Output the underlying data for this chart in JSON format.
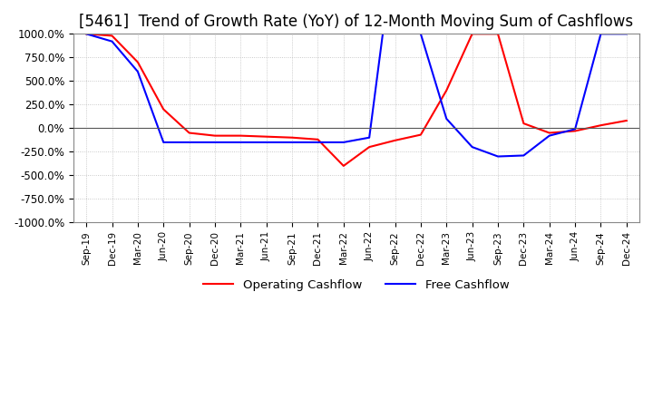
{
  "title": "[5461]  Trend of Growth Rate (YoY) of 12-Month Moving Sum of Cashflows",
  "ylim": [
    -1000,
    1000
  ],
  "yticks": [
    -1000,
    -750,
    -500,
    -250,
    0,
    250,
    500,
    750,
    1000
  ],
  "ytick_labels": [
    "-1000.0%",
    "-750.0%",
    "-500.0%",
    "-250.0%",
    "0.0%",
    "250.0%",
    "500.0%",
    "750.0%",
    "1000.0%"
  ],
  "xlabel_dates": [
    "Sep-19",
    "Dec-19",
    "Mar-20",
    "Jun-20",
    "Sep-20",
    "Dec-20",
    "Mar-21",
    "Jun-21",
    "Sep-21",
    "Dec-21",
    "Mar-22",
    "Jun-22",
    "Sep-22",
    "Dec-22",
    "Mar-23",
    "Jun-23",
    "Sep-23",
    "Dec-23",
    "Mar-24",
    "Jun-24",
    "Sep-24",
    "Dec-24"
  ],
  "operating_cashflow": [
    1000,
    980,
    700,
    200,
    -50,
    -80,
    -80,
    -90,
    -100,
    -120,
    -400,
    -200,
    -130,
    -70,
    400,
    1000,
    1000,
    50,
    -50,
    -30,
    30,
    80
  ],
  "free_cashflow": [
    1000,
    920,
    600,
    -150,
    -150,
    -150,
    -150,
    -150,
    -150,
    -150,
    -150,
    -100,
    2000,
    1000,
    100,
    -200,
    -300,
    -290,
    -80,
    -10,
    1000,
    1000
  ],
  "operating_color": "#ff0000",
  "free_color": "#0000ff",
  "background_color": "#ffffff",
  "grid_color": "#bbbbbb",
  "title_fontsize": 12,
  "legend_labels": [
    "Operating Cashflow",
    "Free Cashflow"
  ]
}
